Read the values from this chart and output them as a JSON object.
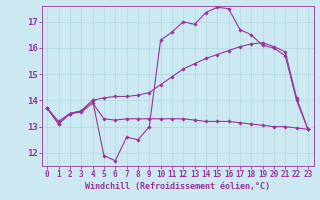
{
  "background_color": "#cce8f0",
  "grid_color": "#b0d8e0",
  "line_color": "#993399",
  "xlabel": "Windchill (Refroidissement éolien,°C)",
  "xlabel_fontsize": 6.0,
  "ytick_fontsize": 6.5,
  "xtick_fontsize": 5.5,
  "yticks": [
    12,
    13,
    14,
    15,
    16,
    17
  ],
  "xticks": [
    0,
    1,
    2,
    3,
    4,
    5,
    6,
    7,
    8,
    9,
    10,
    11,
    12,
    13,
    14,
    15,
    16,
    17,
    18,
    19,
    20,
    21,
    22,
    23
  ],
  "ylim": [
    11.5,
    17.6
  ],
  "xlim": [
    -0.5,
    23.5
  ],
  "series1_x": [
    0,
    1,
    2,
    3,
    4,
    5,
    6,
    7,
    8,
    9,
    10,
    11,
    12,
    13,
    14,
    15,
    16,
    17,
    18,
    19,
    20,
    21,
    22,
    23
  ],
  "series1_y": [
    13.7,
    13.1,
    13.5,
    13.6,
    14.0,
    11.9,
    11.7,
    12.6,
    12.5,
    13.0,
    16.3,
    16.6,
    17.0,
    16.9,
    17.35,
    17.55,
    17.5,
    16.7,
    16.5,
    16.1,
    16.0,
    15.7,
    14.0,
    12.9
  ],
  "series2_x": [
    0,
    1,
    2,
    3,
    4,
    5,
    6,
    7,
    8,
    9,
    10,
    11,
    12,
    13,
    14,
    15,
    16,
    17,
    18,
    19,
    20,
    21,
    22,
    23
  ],
  "series2_y": [
    13.7,
    13.2,
    13.5,
    13.6,
    14.0,
    14.1,
    14.15,
    14.15,
    14.2,
    14.3,
    14.6,
    14.9,
    15.2,
    15.4,
    15.6,
    15.75,
    15.9,
    16.05,
    16.15,
    16.2,
    16.05,
    15.85,
    14.1,
    12.9
  ],
  "series3_x": [
    0,
    1,
    2,
    3,
    4,
    5,
    6,
    7,
    8,
    9,
    10,
    11,
    12,
    13,
    14,
    15,
    16,
    17,
    18,
    19,
    20,
    21,
    22,
    23
  ],
  "series3_y": [
    13.7,
    13.1,
    13.5,
    13.55,
    13.9,
    13.3,
    13.25,
    13.3,
    13.3,
    13.3,
    13.3,
    13.3,
    13.3,
    13.25,
    13.2,
    13.2,
    13.2,
    13.15,
    13.1,
    13.05,
    13.0,
    13.0,
    12.95,
    12.9
  ]
}
